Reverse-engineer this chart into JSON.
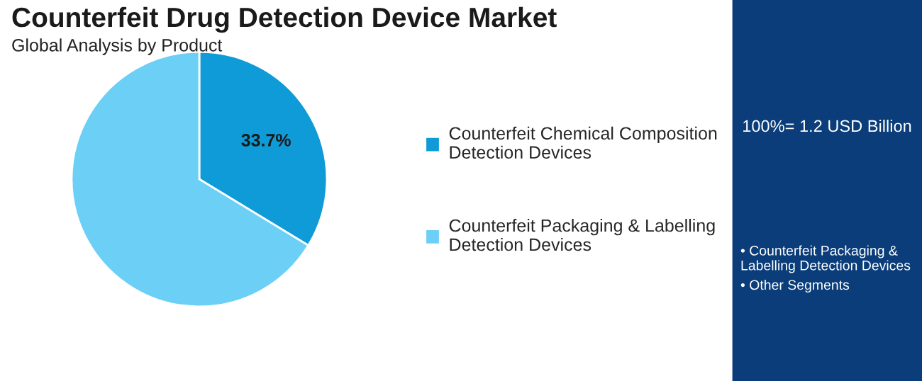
{
  "chart_data": {
    "type": "pie",
    "title": "Counterfeit Drug Detection Device Market",
    "subtitle": "Global Analysis by Product",
    "categories": [
      "Counterfeit Chemical Composition\nDetection Devices",
      "Counterfeit Packaging & Labelling\nDetection Devices"
    ],
    "values": [
      33.7,
      66.3
    ],
    "colors": [
      "#0f9bd7",
      "#6ccff6"
    ],
    "value_labels": [
      "33.7%",
      null
    ],
    "legend": "right",
    "annotations": [
      "100%= 1.2 USD Billion",
      "• Counterfeit Packaging &\nLabelling Detection Devices",
      "• Other Segments"
    ]
  }
}
